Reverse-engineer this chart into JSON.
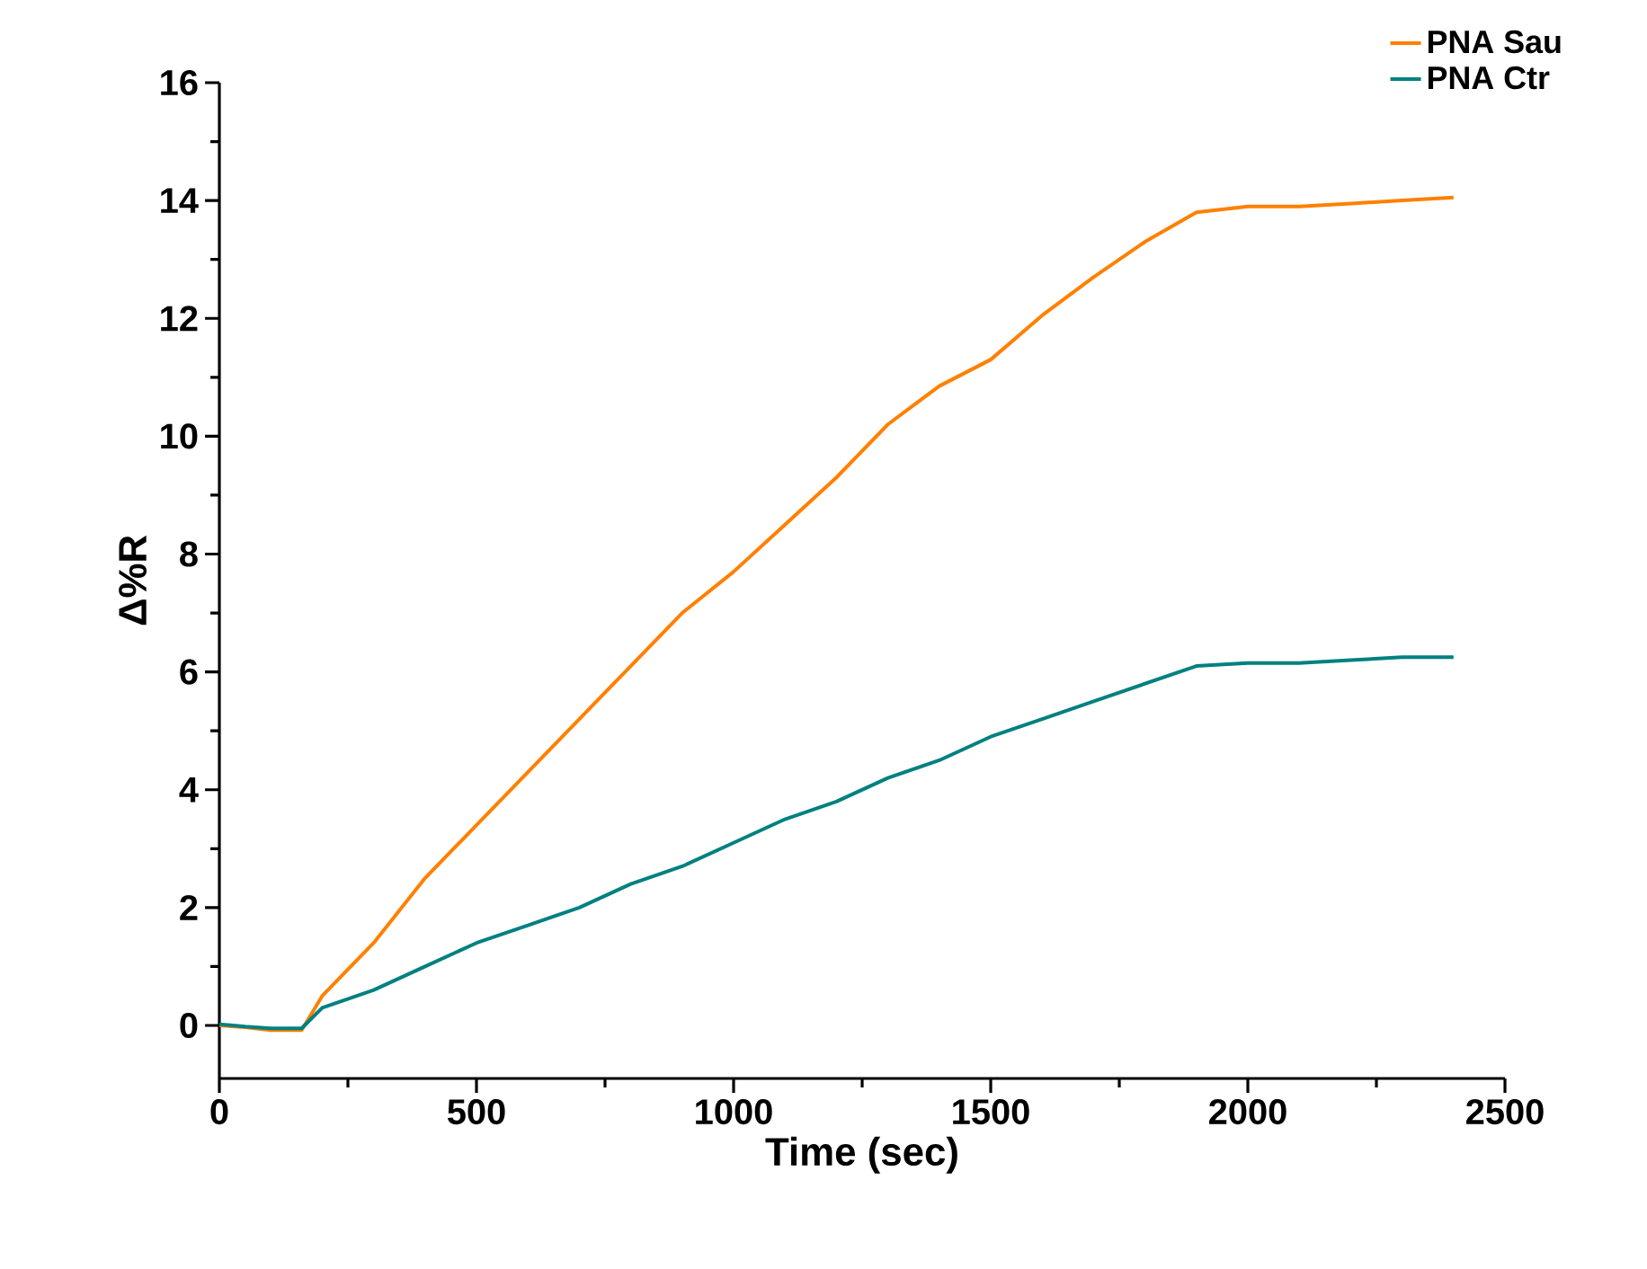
{
  "chart_data": {
    "type": "line",
    "xlabel": "Time (sec)",
    "ylabel": "Δ%R",
    "x": [
      0,
      50,
      100,
      160,
      200,
      300,
      400,
      500,
      600,
      700,
      800,
      900,
      1000,
      1100,
      1200,
      1300,
      1400,
      1500,
      1600,
      1700,
      1800,
      1900,
      2000,
      2100,
      2200,
      2300,
      2400
    ],
    "series": [
      {
        "name": "PNA Sau",
        "color": "#ff8000",
        "values": [
          0,
          -0.03,
          -0.08,
          -0.08,
          0.5,
          1.4,
          2.5,
          3.4,
          4.3,
          5.2,
          6.1,
          7.0,
          7.7,
          8.5,
          9.3,
          10.2,
          10.85,
          11.3,
          12.05,
          12.7,
          13.3,
          13.8,
          13.9,
          13.9,
          13.95,
          14.0,
          14.05
        ]
      },
      {
        "name": "PNA Ctr",
        "color": "#008080",
        "values": [
          0.02,
          -0.02,
          -0.05,
          -0.05,
          0.3,
          0.6,
          1.0,
          1.4,
          1.7,
          2.0,
          2.4,
          2.7,
          3.1,
          3.5,
          3.8,
          4.2,
          4.5,
          4.9,
          5.2,
          5.5,
          5.8,
          6.1,
          6.15,
          6.15,
          6.2,
          6.25,
          6.25
        ]
      }
    ],
    "xlim": [
      0,
      2500
    ],
    "xticks": [
      0,
      500,
      1000,
      1500,
      2000,
      2500
    ],
    "ylim": [
      -0.9,
      16
    ],
    "yticks": [
      0,
      2,
      4,
      6,
      8,
      10,
      12,
      14,
      16
    ],
    "legend": "top right"
  }
}
